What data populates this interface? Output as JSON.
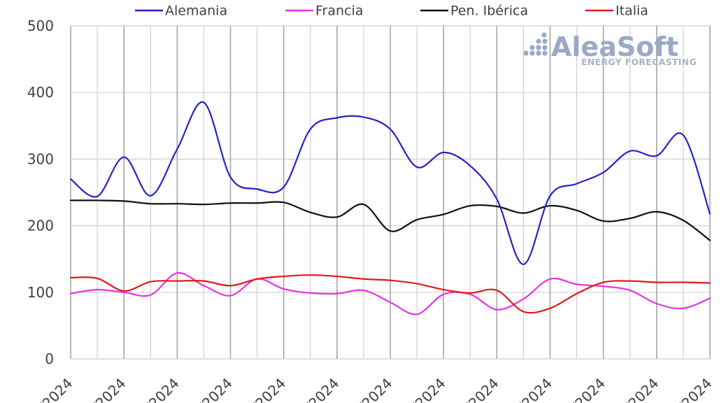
{
  "chart_data": {
    "type": "line",
    "title": "",
    "xlabel": "",
    "ylabel": "",
    "ylim": [
      0,
      500
    ],
    "yticks": [
      0,
      100,
      200,
      300,
      400,
      500
    ],
    "grid": true,
    "legend_position": "top",
    "x_tick_labels": [
      "/2024",
      "/2024",
      "/2024",
      "/2024",
      "/2024",
      "/2024",
      "/2024",
      "/2024",
      "/2024",
      "/2024",
      "/2024",
      "/2024",
      "/2024"
    ],
    "x": [
      0,
      1,
      2,
      3,
      4,
      5,
      6,
      7,
      8,
      9,
      10,
      11,
      12,
      13,
      14,
      15,
      16,
      17,
      18,
      19,
      20,
      21,
      22,
      23,
      24
    ],
    "series": [
      {
        "name": "Alemania",
        "color": "#2323c8",
        "values": [
          270,
          244,
          303,
          245,
          315,
          385,
          273,
          255,
          258,
          345,
          362,
          363,
          345,
          288,
          310,
          290,
          240,
          142,
          245,
          263,
          280,
          312,
          305,
          336,
          218
        ]
      },
      {
        "name": "Francia",
        "color": "#e633e6",
        "values": [
          98,
          104,
          100,
          96,
          129,
          110,
          95,
          120,
          105,
          99,
          98,
          103,
          85,
          67,
          97,
          97,
          74,
          90,
          120,
          112,
          109,
          103,
          83,
          76,
          91
        ]
      },
      {
        "name": "Pen. Ibérica",
        "color": "#111111",
        "values": [
          238,
          238,
          237,
          233,
          233,
          232,
          234,
          234,
          235,
          220,
          213,
          232,
          192,
          209,
          217,
          230,
          229,
          219,
          230,
          223,
          207,
          211,
          221,
          208,
          178
        ]
      },
      {
        "name": "Italia",
        "color": "#e01919",
        "values": [
          122,
          121,
          102,
          116,
          117,
          117,
          110,
          120,
          124,
          126,
          124,
          120,
          118,
          113,
          104,
          99,
          103,
          71,
          76,
          98,
          115,
          117,
          115,
          115,
          114
        ]
      }
    ]
  },
  "watermark": {
    "brand": "AleaSoft",
    "tagline": "ENERGY FORECASTING"
  }
}
